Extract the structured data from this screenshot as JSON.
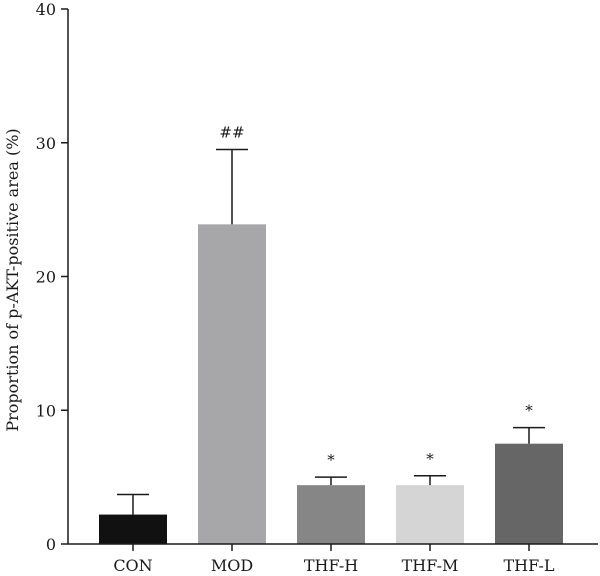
{
  "chart_data": {
    "type": "bar",
    "title": "",
    "xlabel": "",
    "ylabel": "Proportion of p-AKT-positive area (%)",
    "ylim": [
      0,
      40
    ],
    "yticks": [
      0,
      10,
      20,
      30,
      40
    ],
    "grid": false,
    "categories": [
      "CON",
      "MOD",
      "THF-H",
      "THF-M",
      "THF-L"
    ],
    "values": [
      2.2,
      23.9,
      4.4,
      4.4,
      7.5
    ],
    "errors": [
      1.5,
      5.6,
      0.6,
      0.7,
      1.2
    ],
    "annotations": [
      "",
      "##",
      "*",
      "*",
      "*"
    ],
    "colors": [
      "#111111",
      "#a7a7a9",
      "#868686",
      "#d5d5d5",
      "#666666"
    ]
  }
}
